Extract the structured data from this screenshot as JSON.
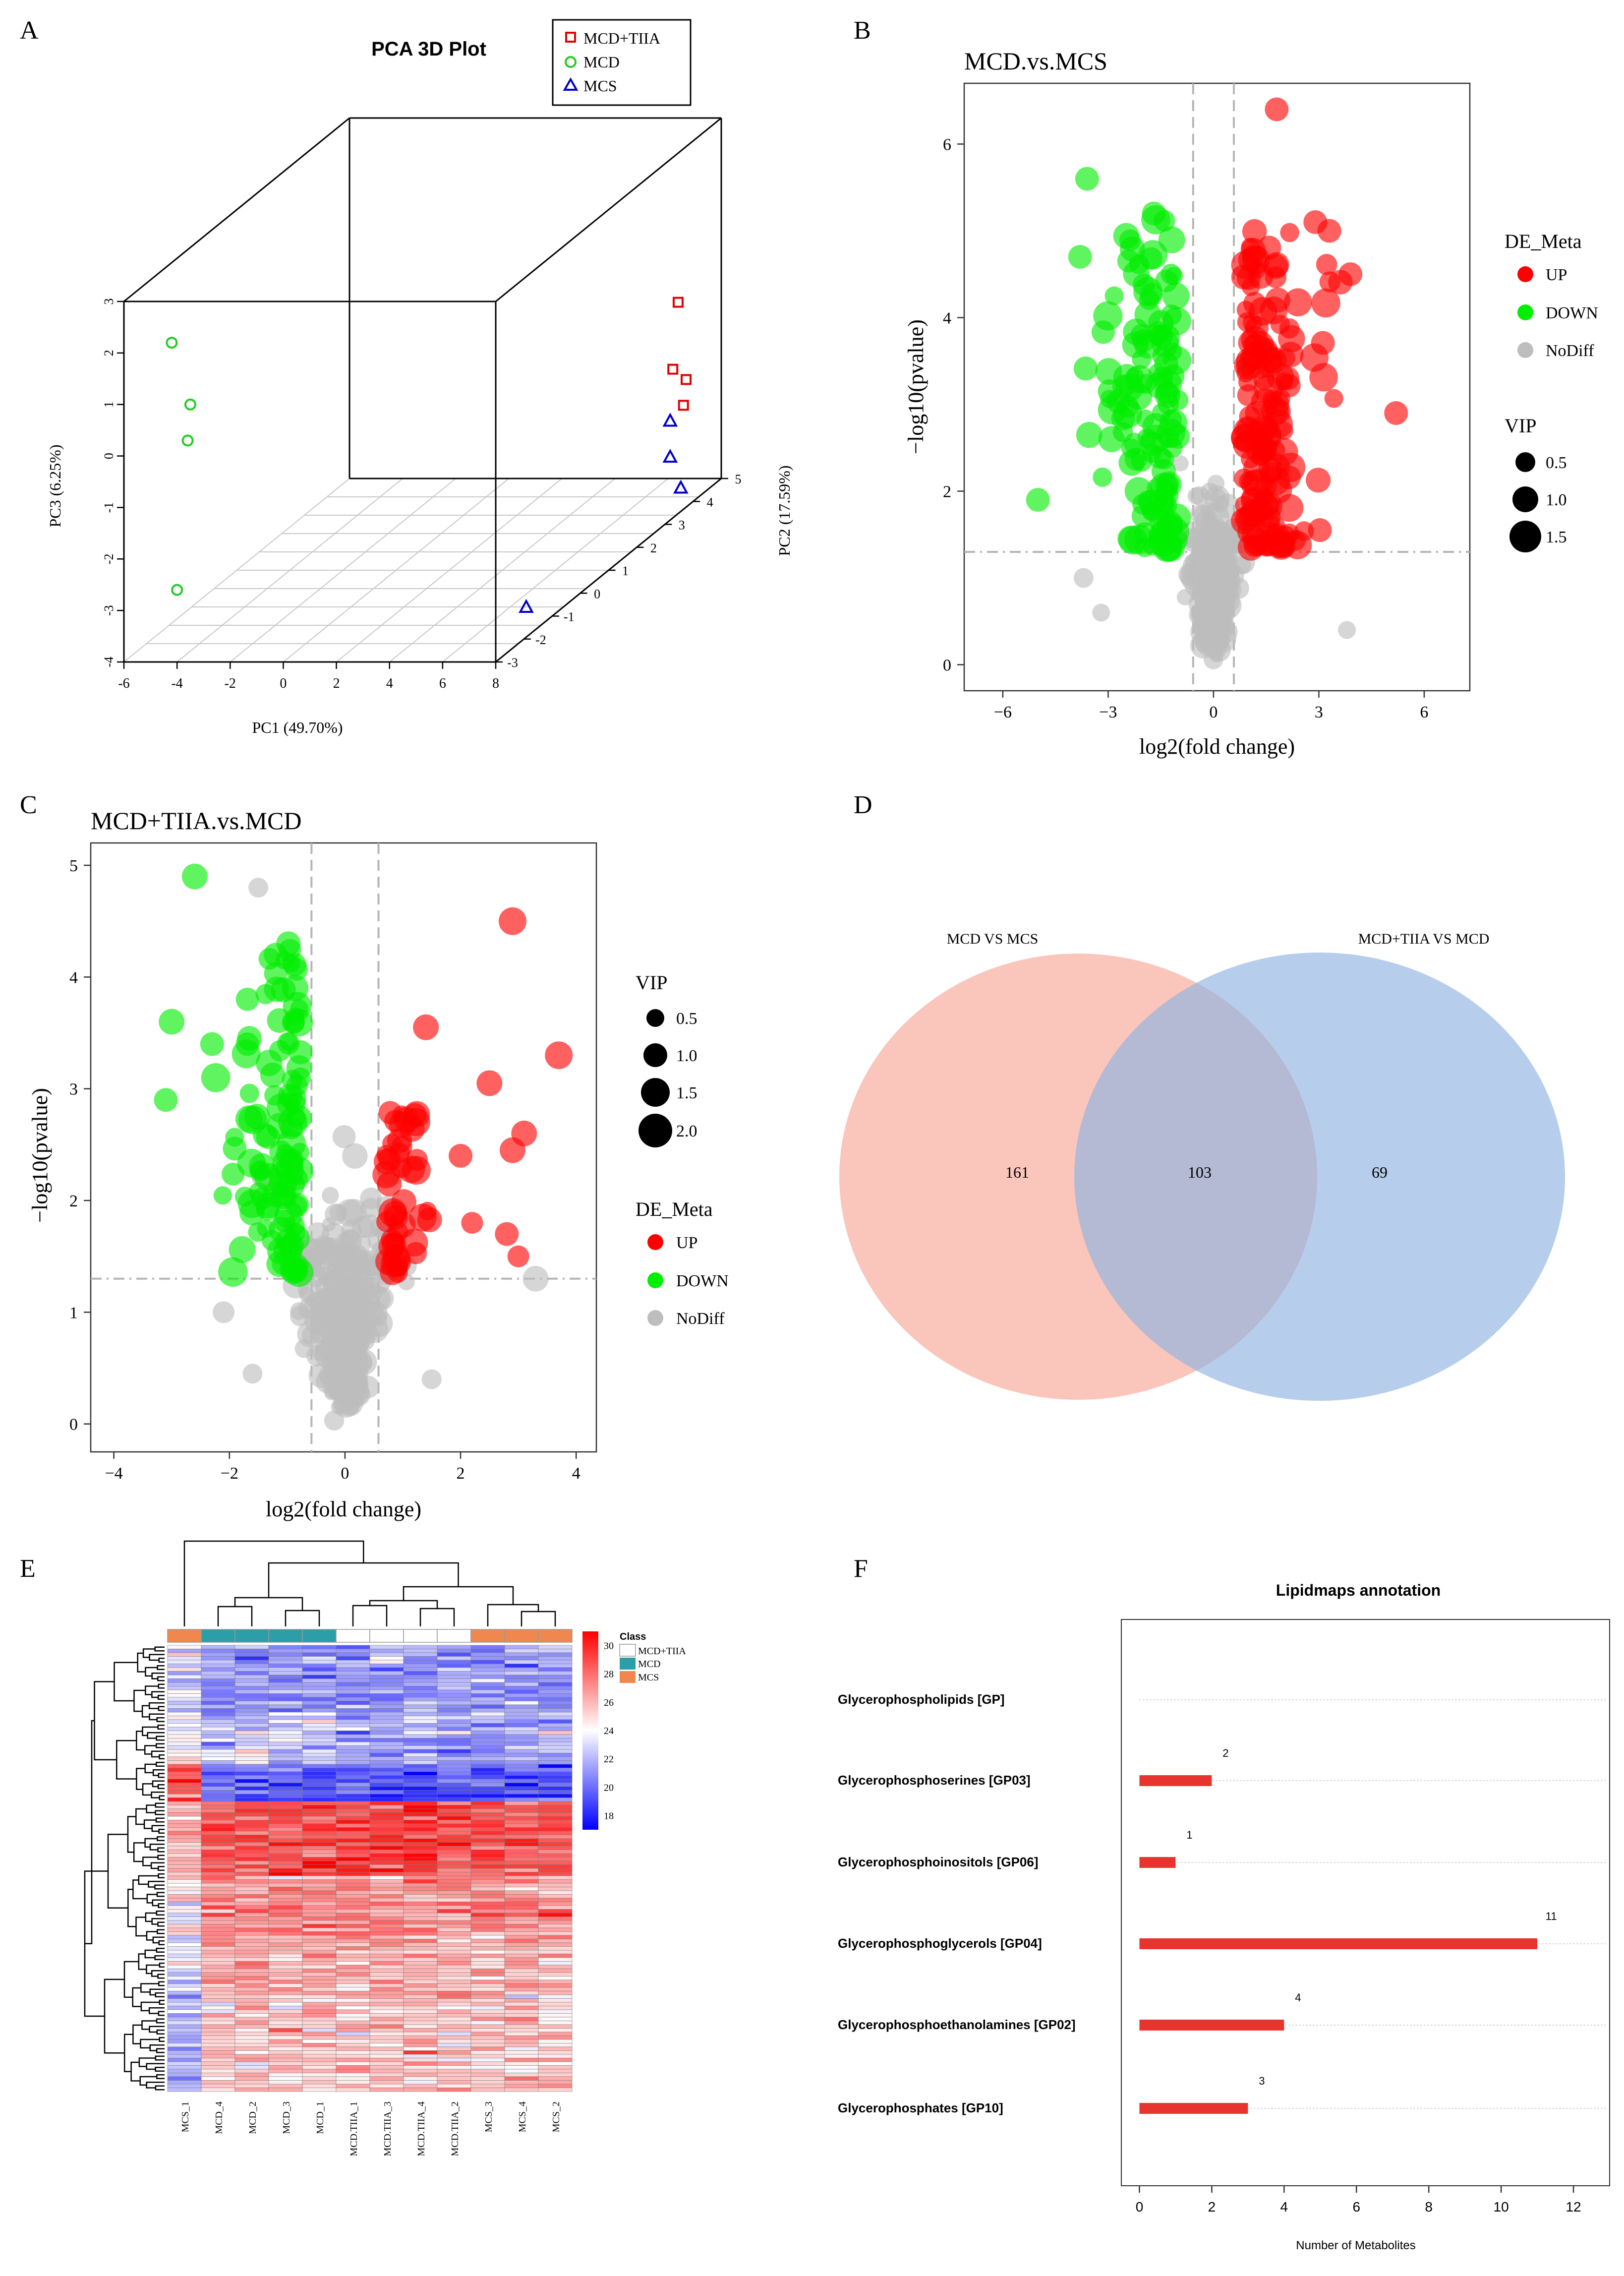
{
  "panel_letters": {
    "a": "A",
    "b": "B",
    "c": "C",
    "d": "D",
    "e": "E",
    "f": "F"
  },
  "chart_data": [
    {
      "id": "A",
      "type": "scatter",
      "title": "PCA 3D Plot",
      "xlabel": "PC1 (49.70%)",
      "ylabel": "PC2 (17.59%)",
      "zlabel": "PC3 (6.25%)",
      "xlim": [
        -6,
        8
      ],
      "ylim": [
        -3,
        5
      ],
      "zlim": [
        -4,
        3
      ],
      "xticks": [
        -6,
        -4,
        -2,
        0,
        2,
        4,
        6,
        8
      ],
      "yticks": [
        -3,
        -2,
        -1,
        0,
        1,
        2,
        3,
        4,
        5
      ],
      "zticks": [
        -4,
        -3,
        -2,
        -1,
        0,
        1,
        2,
        3
      ],
      "legend": [
        {
          "name": "MCD+TIIA",
          "marker": "square",
          "color": "#e00000"
        },
        {
          "name": "MCD",
          "marker": "circle",
          "color": "#22cc22"
        },
        {
          "name": "MCS",
          "marker": "triangle",
          "color": "#0000cc"
        }
      ],
      "points": {
        "MCD+TIIA": [
          [
            6.8,
            4.6,
            -0.4
          ],
          [
            6.6,
            4.6,
            -1.7
          ],
          [
            7.1,
            4.6,
            -1.9
          ],
          [
            7.0,
            4.6,
            -2.4
          ]
        ],
        "MCD": [
          [
            -4.2,
            -3,
            2.2
          ],
          [
            -3.5,
            -3,
            1.0
          ],
          [
            -3.6,
            -3,
            0.3
          ],
          [
            -4.0,
            -3,
            -2.6
          ]
        ],
        "MCS": [
          [
            6.5,
            4.6,
            -2.7
          ],
          [
            6.5,
            4.6,
            -3.4
          ],
          [
            6.9,
            4.6,
            -4.0
          ],
          [
            6.6,
            -0.6,
            -4.0
          ]
        ]
      }
    },
    {
      "id": "B",
      "type": "scatter",
      "title": "MCD.vs.MCS",
      "xlabel": "log2(fold change)",
      "ylabel": "−log10(pvalue)",
      "xlim": [
        -7.1,
        7.3
      ],
      "ylim": [
        -0.3,
        6.7
      ],
      "xticks": [
        -6,
        -3,
        0,
        3,
        6
      ],
      "yticks": [
        0,
        2,
        4,
        6
      ],
      "vlines": [
        -0.58,
        0.58
      ],
      "hline": 1.3,
      "legend_de_title": "DE_Meta",
      "legend_de": [
        {
          "name": "UP",
          "color": "#ff0000"
        },
        {
          "name": "DOWN",
          "color": "#00ee00"
        },
        {
          "name": "NoDiff",
          "color": "#bdbdbd"
        }
      ],
      "legend_vip_title": "VIP",
      "legend_vip": [
        "0.5",
        "1.0",
        "1.5"
      ]
    },
    {
      "id": "C",
      "type": "scatter",
      "title": "MCD+TIIA.vs.MCD",
      "xlabel": "log2(fold change)",
      "ylabel": "−log10(pvalue)",
      "xlim": [
        -4.4,
        4.35
      ],
      "ylim": [
        -0.25,
        5.2
      ],
      "xticks": [
        -4,
        -2,
        0,
        2,
        4
      ],
      "yticks": [
        0,
        1,
        2,
        3,
        4,
        5
      ],
      "vlines": [
        -0.58,
        0.58
      ],
      "hline": 1.3,
      "legend_vip_title": "VIP",
      "legend_vip": [
        "0.5",
        "1.0",
        "1.5",
        "2.0"
      ],
      "legend_de_title": "DE_Meta",
      "legend_de": [
        {
          "name": "UP",
          "color": "#ff0000"
        },
        {
          "name": "DOWN",
          "color": "#00ee00"
        },
        {
          "name": "NoDiff",
          "color": "#bdbdbd"
        }
      ]
    },
    {
      "id": "D",
      "type": "venn",
      "sets": [
        {
          "name": "MCD VS MCS",
          "color": "#f7a898"
        },
        {
          "name": "MCD+TIIA VS MCD",
          "color": "#8fb2e0"
        }
      ],
      "only_a": "161",
      "both": "103",
      "only_b": "69"
    },
    {
      "id": "E",
      "type": "heatmap",
      "columns": [
        "MCS_1",
        "MCD_4",
        "MCD_2",
        "MCD_3",
        "MCD_1",
        "MCD.TIIA_1",
        "MCD.TIIA_3",
        "MCD.TIIA_4",
        "MCD.TIIA_2",
        "MCS_3",
        "MCS_4",
        "MCS_2"
      ],
      "column_class": [
        "MCS",
        "MCD",
        "MCD",
        "MCD",
        "MCD",
        "MCD+TIIA",
        "MCD+TIIA",
        "MCD+TIIA",
        "MCD+TIIA",
        "MCS",
        "MCS",
        "MCS"
      ],
      "class_title": "Class",
      "classes": [
        {
          "name": "MCD+TIIA",
          "color": "#ffffff"
        },
        {
          "name": "MCD",
          "color": "#2b9ea8"
        },
        {
          "name": "MCS",
          "color": "#f0874f"
        }
      ],
      "scale_ticks": [
        30,
        28,
        26,
        24,
        22,
        20,
        18
      ],
      "scale_range": [
        17,
        31
      ]
    },
    {
      "id": "F",
      "type": "bar",
      "orientation": "horizontal",
      "title": "Lipidmaps annotation",
      "xlabel": "Number of Metabolites",
      "xlim": [
        -0.5,
        13
      ],
      "xticks": [
        0,
        2,
        4,
        6,
        8,
        10,
        12
      ],
      "categories": [
        "Glycerophospholipids [GP]",
        "Glycerophosphoserines [GP03]",
        "Glycerophosphoinositols [GP06]",
        "Glycerophosphoglycerols [GP04]",
        "Glycerophosphoethanolamines [GP02]",
        "Glycerophosphates [GP10]"
      ],
      "values": [
        null,
        2,
        1,
        11,
        4,
        3
      ],
      "data_labels": [
        "",
        "2",
        "1",
        "11",
        "4",
        "3"
      ],
      "bar_color": "#e8342f"
    }
  ]
}
